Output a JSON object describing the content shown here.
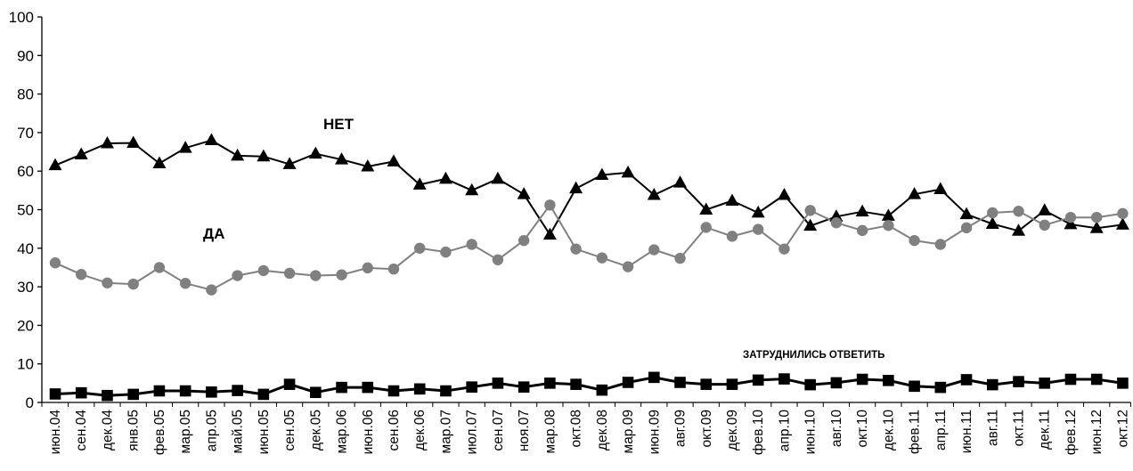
{
  "chart_data": {
    "type": "line",
    "title": "",
    "xlabel": "",
    "ylabel": "",
    "ylim": [
      0,
      100
    ],
    "yticks": [
      "0",
      "10",
      "20",
      "30",
      "40",
      "50",
      "60",
      "70",
      "80",
      "90",
      "100"
    ],
    "grid": false,
    "categories": [
      "июн.04",
      "сен.04",
      "дек.04",
      "янв.05",
      "фев.05",
      "мар.05",
      "апр.05",
      "май.05",
      "июн.05",
      "сен.05",
      "дек.05",
      "мар.06",
      "июн.06",
      "сен.06",
      "дек.06",
      "мар.07",
      "июл.07",
      "сен.07",
      "ноя.07",
      "мар.08",
      "окт.08",
      "дек.08",
      "мар.09",
      "июн.09",
      "авг.09",
      "окт.09",
      "дек.09",
      "фев.10",
      "апр.10",
      "июн.10",
      "авг.10",
      "окт.10",
      "дек.10",
      "фев.11",
      "апр.11",
      "июн.11",
      "авг.11",
      "окт.11",
      "дек.11",
      "фев.12",
      "июн.12",
      "окт.12"
    ],
    "series": [
      {
        "name": "НЕТ",
        "color": "#000000",
        "marker": "triangle",
        "values": [
          61.5,
          64.3,
          67.2,
          67.3,
          62,
          66,
          68,
          64,
          63.8,
          61.8,
          64.5,
          63,
          61.2,
          62.5,
          56.5,
          58,
          55,
          58,
          54,
          43.5,
          55.5,
          59,
          59.6,
          53.8,
          57,
          50,
          52.3,
          49.2,
          53.8,
          45.8,
          48.2,
          49.5,
          48.4,
          54,
          55.3,
          48.8,
          46.3,
          44.5,
          49.8,
          46.2,
          45.2,
          46.1
        ]
      },
      {
        "name": "ДА",
        "color": "#808080",
        "marker": "circle",
        "values": [
          36.2,
          33.2,
          31,
          30.7,
          35,
          30.9,
          29.2,
          32.9,
          34.2,
          33.5,
          32.9,
          33.1,
          34.9,
          34.6,
          40,
          39,
          41,
          37,
          42,
          51.2,
          39.8,
          37.5,
          35.2,
          39.6,
          37.4,
          45.4,
          43.1,
          44.9,
          39.8,
          49.8,
          46.6,
          44.6,
          45.9,
          42,
          41,
          45.3,
          49.2,
          49.6,
          46,
          48,
          48,
          49
        ]
      },
      {
        "name": "ЗАТРУДНИЛИСЬ ОТВЕТИТЬ",
        "color": "#000000",
        "marker": "square",
        "values": [
          2.2,
          2.5,
          1.8,
          2.1,
          3,
          3,
          2.7,
          3.1,
          2.1,
          4.7,
          2.6,
          3.9,
          3.9,
          3,
          3.5,
          3,
          4,
          5,
          4,
          5,
          4.7,
          3.2,
          5.2,
          6.5,
          5.2,
          4.7,
          4.7,
          5.8,
          6.1,
          4.6,
          5.1,
          6,
          5.7,
          4.2,
          3.9,
          5.9,
          4.6,
          5.4,
          5,
          6,
          6,
          5
        ]
      }
    ]
  }
}
